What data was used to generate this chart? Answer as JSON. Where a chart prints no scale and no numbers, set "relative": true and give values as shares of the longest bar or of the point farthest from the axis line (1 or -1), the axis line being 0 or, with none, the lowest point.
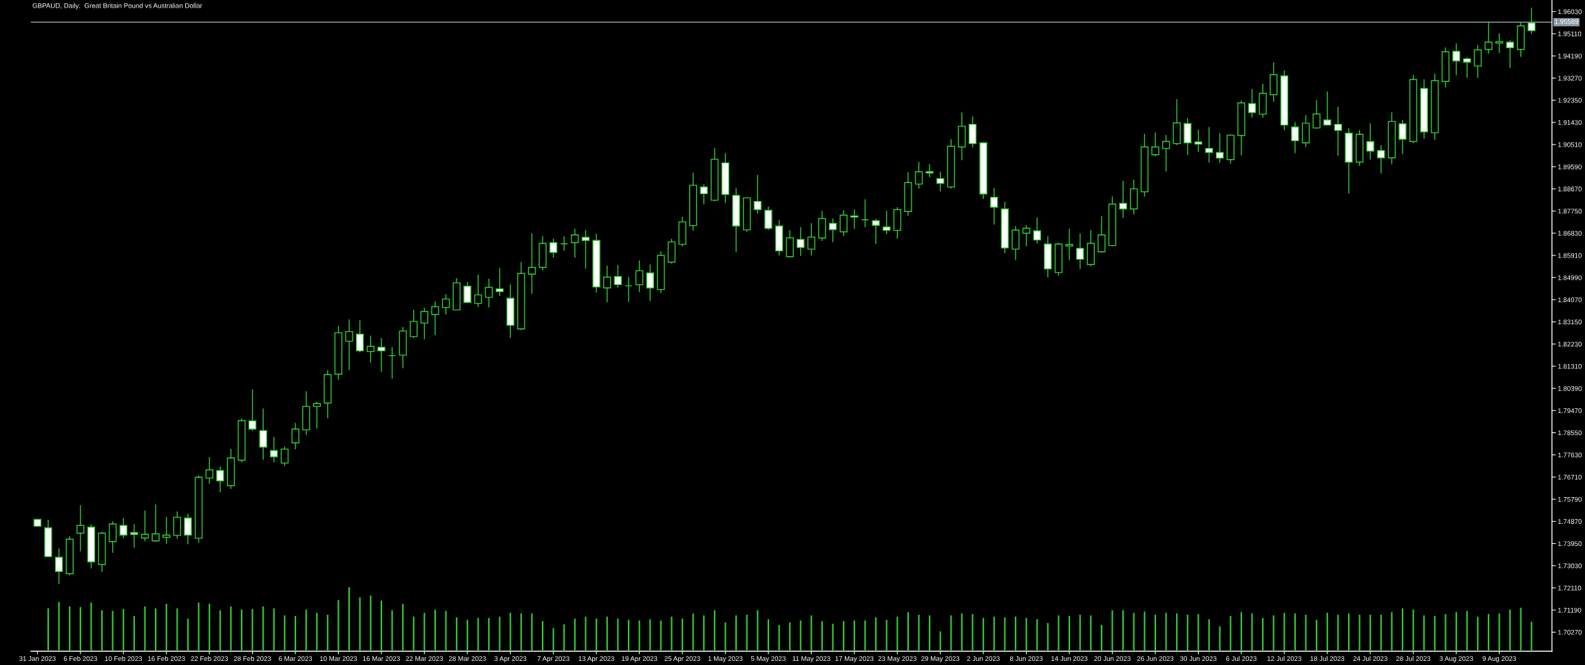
{
  "chart_data": [
    {
      "type": "candlestick",
      "title": "GBPAUD, Daily:  Great Britain Pound vs Australian Dollar",
      "categories": [
        "31 Jan 2023",
        null,
        null,
        null,
        "6 Feb 2023",
        null,
        null,
        null,
        "10 Feb 2023",
        null,
        null,
        null,
        "16 Feb 2023",
        null,
        null,
        null,
        "22 Feb 2023",
        null,
        null,
        null,
        "28 Feb 2023",
        null,
        null,
        null,
        "6 Mar 2023",
        null,
        null,
        null,
        "10 Mar 2023",
        null,
        null,
        null,
        "16 Mar 2023",
        null,
        null,
        null,
        "22 Mar 2023",
        null,
        null,
        null,
        "28 Mar 2023",
        null,
        null,
        null,
        "3 Apr 2023",
        null,
        null,
        null,
        "7 Apr 2023",
        null,
        null,
        null,
        "13 Apr 2023",
        null,
        null,
        null,
        "19 Apr 2023",
        null,
        null,
        null,
        "25 Apr 2023",
        null,
        null,
        null,
        "1 May 2023",
        null,
        null,
        null,
        "5 May 2023",
        null,
        null,
        null,
        "11 May 2023",
        null,
        null,
        null,
        "17 May 2023",
        null,
        null,
        null,
        "23 May 2023",
        null,
        null,
        null,
        "29 May 2023",
        null,
        null,
        null,
        "2 Jun 2023",
        null,
        null,
        null,
        "8 Jun 2023",
        null,
        null,
        null,
        "14 Jun 2023",
        null,
        null,
        null,
        "20 Jun 2023",
        null,
        null,
        null,
        "26 Jun 2023",
        null,
        null,
        null,
        "30 Jun 2023",
        null,
        null,
        null,
        "6 Jul 2023",
        null,
        null,
        null,
        "12 Jul 2023",
        null,
        null,
        null,
        "18 Jul 2023",
        null,
        null,
        null,
        "24 Jul 2023",
        null,
        null,
        null,
        "28 Jul 2023",
        null,
        null,
        null,
        "3 Aug 2023",
        null,
        null,
        null,
        "9 Aug 2023",
        null,
        null,
        null
      ],
      "ohlc": [
        [
          1.7495,
          1.7498,
          1.7464,
          1.7467
        ],
        [
          1.746,
          1.7494,
          1.7338,
          1.7341
        ],
        [
          1.7338,
          1.7375,
          1.7227,
          1.7279
        ],
        [
          1.727,
          1.7425,
          1.7263,
          1.7413
        ],
        [
          1.7438,
          1.7554,
          1.7363,
          1.747
        ],
        [
          1.7463,
          1.7475,
          1.7292,
          1.7319
        ],
        [
          1.7308,
          1.7444,
          1.7277,
          1.7438
        ],
        [
          1.7403,
          1.7487,
          1.7357,
          1.7476
        ],
        [
          1.747,
          1.7501,
          1.7417,
          1.743
        ],
        [
          1.744,
          1.7475,
          1.7379,
          1.7433
        ],
        [
          1.7418,
          1.7532,
          1.7405,
          1.7433
        ],
        [
          1.7406,
          1.7557,
          1.7403,
          1.7435
        ],
        [
          1.7421,
          1.7505,
          1.7394,
          1.743
        ],
        [
          1.7429,
          1.7528,
          1.7415,
          1.7504
        ],
        [
          1.7501,
          1.7519,
          1.7392,
          1.743
        ],
        [
          1.7417,
          1.7678,
          1.7398,
          1.767
        ],
        [
          1.7667,
          1.7754,
          1.7643,
          1.7701
        ],
        [
          1.7698,
          1.7715,
          1.7608,
          1.7655
        ],
        [
          1.7635,
          1.7788,
          1.7622,
          1.775
        ],
        [
          1.7741,
          1.7914,
          1.7732,
          1.7905
        ],
        [
          1.7904,
          1.8035,
          1.7862,
          1.787
        ],
        [
          1.7864,
          1.7955,
          1.7743,
          1.7795
        ],
        [
          1.7781,
          1.7838,
          1.7732,
          1.7755
        ],
        [
          1.7729,
          1.7798,
          1.7717,
          1.7787
        ],
        [
          1.7813,
          1.7896,
          1.7786,
          1.787
        ],
        [
          1.7867,
          1.8027,
          1.7846,
          1.7964
        ],
        [
          1.7964,
          1.7984,
          1.7872,
          1.7976
        ],
        [
          1.7978,
          1.8115,
          1.7915,
          1.8096
        ],
        [
          1.8098,
          1.8298,
          1.8075,
          1.827
        ],
        [
          1.8235,
          1.8325,
          1.8115,
          1.8275
        ],
        [
          1.8264,
          1.8322,
          1.8189,
          1.8195
        ],
        [
          1.8192,
          1.8258,
          1.8146,
          1.8213
        ],
        [
          1.821,
          1.8248,
          1.8108,
          1.8195
        ],
        [
          1.8175,
          1.821,
          1.8079,
          1.8175
        ],
        [
          1.8177,
          1.8294,
          1.8122,
          1.8277
        ],
        [
          1.8254,
          1.8365,
          1.8248,
          1.8317
        ],
        [
          1.831,
          1.8373,
          1.8243,
          1.8358
        ],
        [
          1.8346,
          1.8401,
          1.826,
          1.8378
        ],
        [
          1.8375,
          1.843,
          1.8346,
          1.841
        ],
        [
          1.8365,
          1.8497,
          1.8363,
          1.8477
        ],
        [
          1.8463,
          1.8481,
          1.8394,
          1.8396
        ],
        [
          1.8392,
          1.8511,
          1.8377,
          1.8427
        ],
        [
          1.8417,
          1.8494,
          1.8375,
          1.8458
        ],
        [
          1.8452,
          1.8538,
          1.8422,
          1.8441
        ],
        [
          1.8413,
          1.847,
          1.8249,
          1.8301
        ],
        [
          1.8286,
          1.8564,
          1.8281,
          1.8516
        ],
        [
          1.8513,
          1.8682,
          1.8432,
          1.8541
        ],
        [
          1.8541,
          1.867,
          1.8529,
          1.8641
        ],
        [
          1.8644,
          1.866,
          1.8582,
          1.8603
        ],
        [
          1.8639,
          1.867,
          1.8611,
          1.8639
        ],
        [
          1.8644,
          1.8702,
          1.8582,
          1.8676
        ],
        [
          1.8666,
          1.8696,
          1.8537,
          1.8653
        ],
        [
          1.8653,
          1.8681,
          1.8437,
          1.846
        ],
        [
          1.8456,
          1.8548,
          1.8397,
          1.8501
        ],
        [
          1.8503,
          1.8551,
          1.8457,
          1.847
        ],
        [
          1.8465,
          1.8501,
          1.8398,
          1.8465
        ],
        [
          1.8469,
          1.857,
          1.8439,
          1.8527
        ],
        [
          1.8518,
          1.8553,
          1.8402,
          1.8456
        ],
        [
          1.8449,
          1.8608,
          1.8435,
          1.8591
        ],
        [
          1.8563,
          1.866,
          1.8557,
          1.8647
        ],
        [
          1.8637,
          1.8751,
          1.8628,
          1.873
        ],
        [
          1.8715,
          1.8934,
          1.8694,
          1.8882
        ],
        [
          1.8875,
          1.8887,
          1.8803,
          1.8847
        ],
        [
          1.882,
          1.9036,
          1.8815,
          1.899
        ],
        [
          1.8975,
          1.9015,
          1.8809,
          1.8844
        ],
        [
          1.884,
          1.887,
          1.8605,
          1.8713
        ],
        [
          1.8697,
          1.8832,
          1.8689,
          1.883
        ],
        [
          1.8815,
          1.8925,
          1.8765,
          1.8781
        ],
        [
          1.8778,
          1.8794,
          1.8696,
          1.8703
        ],
        [
          1.8713,
          1.8738,
          1.8591,
          1.861
        ],
        [
          1.8586,
          1.8696,
          1.8584,
          1.8664
        ],
        [
          1.8657,
          1.8708,
          1.8589,
          1.8624
        ],
        [
          1.8617,
          1.8725,
          1.8591,
          1.8667
        ],
        [
          1.8663,
          1.8776,
          1.8651,
          1.8744
        ],
        [
          1.8724,
          1.8744,
          1.8646,
          1.8698
        ],
        [
          1.8689,
          1.8778,
          1.8672,
          1.8758
        ],
        [
          1.8755,
          1.8782,
          1.8702,
          1.875
        ],
        [
          1.8739,
          1.8824,
          1.8708,
          1.8739
        ],
        [
          1.8735,
          1.8744,
          1.8639,
          1.8716
        ],
        [
          1.8709,
          1.8776,
          1.8679,
          1.8695
        ],
        [
          1.8695,
          1.8791,
          1.866,
          1.8781
        ],
        [
          1.8773,
          1.8936,
          1.8755,
          1.8893
        ],
        [
          1.8887,
          1.8979,
          1.8868,
          1.8938
        ],
        [
          1.8939,
          1.897,
          1.8915,
          1.8933
        ],
        [
          1.891,
          1.8938,
          1.8857,
          1.889
        ],
        [
          1.8875,
          1.9073,
          1.8868,
          1.9044
        ],
        [
          1.9041,
          1.9184,
          1.8986,
          1.9127
        ],
        [
          1.9135,
          1.9168,
          1.9039,
          1.9055
        ],
        [
          1.9058,
          1.9062,
          1.8825,
          1.8846
        ],
        [
          1.8832,
          1.887,
          1.8719,
          1.8791
        ],
        [
          1.8784,
          1.8813,
          1.86,
          1.8622
        ],
        [
          1.8617,
          1.8713,
          1.8572,
          1.8696
        ],
        [
          1.8683,
          1.8716,
          1.8629,
          1.8704
        ],
        [
          1.8693,
          1.8748,
          1.8641,
          1.8655
        ],
        [
          1.8638,
          1.867,
          1.85,
          1.8535
        ],
        [
          1.852,
          1.8644,
          1.8506,
          1.8638
        ],
        [
          1.863,
          1.8702,
          1.8572,
          1.8636
        ],
        [
          1.862,
          1.8682,
          1.8535,
          1.8575
        ],
        [
          1.8553,
          1.8696,
          1.8546,
          1.8641
        ],
        [
          1.8606,
          1.8754,
          1.8603,
          1.8676
        ],
        [
          1.8632,
          1.8836,
          1.8629,
          1.8804
        ],
        [
          1.8807,
          1.89,
          1.8746,
          1.8784
        ],
        [
          1.8784,
          1.8905,
          1.876,
          1.8867
        ],
        [
          1.8855,
          1.9096,
          1.8835,
          1.9041
        ],
        [
          1.9009,
          1.9101,
          1.9003,
          1.9041
        ],
        [
          1.9035,
          1.9091,
          1.8939,
          1.9064
        ],
        [
          1.9055,
          1.9239,
          1.9049,
          1.9141
        ],
        [
          1.9138,
          1.916,
          1.9008,
          1.9058
        ],
        [
          1.9062,
          1.9113,
          1.902,
          1.9053
        ],
        [
          1.9035,
          1.9124,
          1.8977,
          1.9018
        ],
        [
          1.9018,
          1.9098,
          1.8975,
          1.8995
        ],
        [
          1.8989,
          1.9094,
          1.8972,
          1.909
        ],
        [
          1.9089,
          1.9234,
          1.9006,
          1.9224
        ],
        [
          1.9221,
          1.9282,
          1.9163,
          1.9184
        ],
        [
          1.9177,
          1.9303,
          1.9163,
          1.9264
        ],
        [
          1.9258,
          1.9392,
          1.9229,
          1.9341
        ],
        [
          1.9336,
          1.9359,
          1.9111,
          1.9132
        ],
        [
          1.9124,
          1.9144,
          1.9015,
          1.9067
        ],
        [
          1.9058,
          1.9173,
          1.9041,
          1.914
        ],
        [
          1.912,
          1.9235,
          1.9117,
          1.9178
        ],
        [
          1.9153,
          1.9272,
          1.913,
          1.9132
        ],
        [
          1.9135,
          1.9208,
          1.9005,
          1.911
        ],
        [
          1.9098,
          1.9119,
          1.8848,
          1.8978
        ],
        [
          1.8978,
          1.9111,
          1.8963,
          1.9093
        ],
        [
          1.9063,
          1.9139,
          1.8989,
          1.9024
        ],
        [
          1.9026,
          1.9049,
          1.8932,
          1.8996
        ],
        [
          1.8996,
          1.9185,
          1.8969,
          1.9147
        ],
        [
          1.9137,
          1.9154,
          1.9012,
          1.9073
        ],
        [
          1.9064,
          1.934,
          1.9057,
          1.9321
        ],
        [
          1.9284,
          1.9322,
          1.9075,
          1.9104
        ],
        [
          1.91,
          1.9345,
          1.907,
          1.9316
        ],
        [
          1.9313,
          1.9454,
          1.9288,
          1.9436
        ],
        [
          1.9438,
          1.9471,
          1.9339,
          1.9398
        ],
        [
          1.9407,
          1.9413,
          1.9329,
          1.9393
        ],
        [
          1.9377,
          1.9464,
          1.9328,
          1.9444
        ],
        [
          1.9446,
          1.9562,
          1.9428,
          1.9476
        ],
        [
          1.9472,
          1.9513,
          1.9431,
          1.9478
        ],
        [
          1.9476,
          1.9484,
          1.9368,
          1.9453
        ],
        [
          1.9446,
          1.9558,
          1.9415,
          1.9544
        ],
        [
          1.9556,
          1.9619,
          1.9511,
          1.9524
        ]
      ],
      "color": "#32cd32",
      "colors": [
        "#ffffff",
        "#ffffff",
        "#ffffff",
        "#000000",
        "#000000",
        "#ffffff",
        "#000000",
        "#000000",
        "#ffffff",
        "#ffffff",
        "#000000",
        "#000000",
        "#000000",
        "#000000",
        "#ffffff",
        "#000000",
        "#000000",
        "#ffffff",
        "#000000",
        "#000000",
        "#ffffff",
        "#ffffff",
        "#ffffff",
        "#000000",
        "#000000",
        "#000000",
        "#000000",
        "#000000",
        "#000000",
        "#000000",
        "#ffffff",
        "#000000",
        "#ffffff",
        "#32cd32",
        "#000000",
        "#000000",
        "#000000",
        "#000000",
        "#000000",
        "#000000",
        "#ffffff",
        "#000000",
        "#000000",
        "#ffffff",
        "#ffffff",
        "#000000",
        "#000000",
        "#000000",
        "#ffffff",
        "#32cd32",
        "#000000",
        "#ffffff",
        "#ffffff",
        "#000000",
        "#ffffff",
        "#32cd32",
        "#000000",
        "#ffffff",
        "#000000",
        "#000000",
        "#000000",
        "#000000",
        "#ffffff",
        "#000000",
        "#ffffff",
        "#ffffff",
        "#000000",
        "#ffffff",
        "#ffffff",
        "#ffffff",
        "#000000",
        "#ffffff",
        "#000000",
        "#000000",
        "#ffffff",
        "#000000",
        "#ffffff",
        "#32cd32",
        "#ffffff",
        "#ffffff",
        "#000000",
        "#000000",
        "#000000",
        "#ffffff",
        "#ffffff",
        "#000000",
        "#000000",
        "#ffffff",
        "#ffffff",
        "#ffffff",
        "#ffffff",
        "#000000",
        "#000000",
        "#ffffff",
        "#ffffff",
        "#000000",
        "#000000",
        "#ffffff",
        "#000000",
        "#000000",
        "#000000",
        "#ffffff",
        "#000000",
        "#000000",
        "#000000",
        "#000000",
        "#000000",
        "#ffffff",
        "#ffffff",
        "#ffffff",
        "#ffffff",
        "#000000",
        "#000000",
        "#ffffff",
        "#000000",
        "#000000",
        "#ffffff",
        "#ffffff",
        "#000000",
        "#000000",
        "#ffffff",
        "#ffffff",
        "#ffffff",
        "#000000",
        "#ffffff",
        "#ffffff",
        "#000000",
        "#ffffff",
        "#000000",
        "#ffffff",
        "#000000",
        "#000000",
        "#ffffff",
        "#ffffff",
        "#000000",
        "#000000",
        "#000000",
        "#ffffff",
        "#000000",
        "#ffffff"
      ],
      "ylim": [
        1.6948,
        1.9651
      ],
      "yticks": [
        {
          "value": 1.7027,
          "label": "1.70270"
        },
        {
          "value": 1.7119,
          "label": "1.71190"
        },
        {
          "value": 1.7211,
          "label": "1.72110"
        },
        {
          "value": 1.7303,
          "label": "1.73030"
        },
        {
          "value": 1.7395,
          "label": "1.73950"
        },
        {
          "value": 1.7487,
          "label": "1.74870"
        },
        {
          "value": 1.7579,
          "label": "1.75790"
        },
        {
          "value": 1.7671,
          "label": "1.76710"
        },
        {
          "value": 1.7763,
          "label": "1.77630"
        },
        {
          "value": 1.7855,
          "label": "1.78550"
        },
        {
          "value": 1.7947,
          "label": "1.79470"
        },
        {
          "value": 1.8039,
          "label": "1.80390"
        },
        {
          "value": 1.8131,
          "label": "1.81310"
        },
        {
          "value": 1.8223,
          "label": "1.82230"
        },
        {
          "value": 1.8315,
          "label": "1.83150"
        },
        {
          "value": 1.8407,
          "label": "1.84070"
        },
        {
          "value": 1.8499,
          "label": "1.84990"
        },
        {
          "value": 1.8591,
          "label": "1.85910"
        },
        {
          "value": 1.8683,
          "label": "1.86830"
        },
        {
          "value": 1.8775,
          "label": "1.87750"
        },
        {
          "value": 1.8867,
          "label": "1.88670"
        },
        {
          "value": 1.8959,
          "label": "1.89590"
        },
        {
          "value": 1.9051,
          "label": "1.90510"
        },
        {
          "value": 1.9143,
          "label": "1.91430"
        },
        {
          "value": 1.9235,
          "label": "1.92350"
        },
        {
          "value": 1.9327,
          "label": "1.93270"
        },
        {
          "value": 1.9419,
          "label": "1.94190"
        },
        {
          "value": 1.9511,
          "label": "1.95110"
        },
        {
          "value": 1.9603,
          "label": "1.96030"
        }
      ],
      "ref_lines": [
        {
          "axis": "y",
          "value": 1.95589,
          "label": "1.95589",
          "color": "#8c98a4"
        }
      ]
    },
    {
      "type": "bar",
      "categories": [
        null,
        null,
        null,
        null,
        null,
        null,
        null,
        null,
        null,
        null,
        null,
        null,
        null,
        null,
        null,
        null,
        null,
        null,
        null,
        null,
        null,
        null,
        null,
        null,
        null,
        null,
        null,
        null,
        null,
        null,
        null,
        null,
        null,
        null,
        null,
        null,
        null,
        null,
        null,
        null,
        null,
        null,
        null,
        null,
        null,
        null,
        null,
        null,
        null,
        null,
        null,
        null,
        null,
        null,
        null,
        null,
        null,
        null,
        null,
        null,
        null,
        null,
        null,
        null,
        null,
        null,
        null,
        null,
        null,
        null,
        null,
        null,
        null,
        null,
        null,
        null,
        null,
        null,
        null,
        null,
        null,
        null,
        null,
        null,
        null,
        null,
        null,
        null,
        null,
        null,
        null,
        null,
        null,
        null,
        null,
        null,
        null,
        null,
        null,
        null,
        null,
        null,
        null,
        null,
        null,
        null,
        null,
        null,
        null,
        null,
        null,
        null,
        null,
        null,
        null,
        null,
        null,
        null,
        null,
        null,
        null,
        null,
        null,
        null,
        null,
        null,
        null,
        null,
        null,
        null,
        null,
        null,
        null,
        null,
        null,
        null,
        null,
        null,
        null,
        null
      ],
      "values": [
        null,
        0.67,
        0.77,
        0.7,
        0.69,
        0.76,
        0.64,
        0.63,
        0.66,
        0.55,
        0.7,
        0.67,
        0.74,
        0.67,
        0.51,
        0.76,
        0.74,
        0.64,
        0.7,
        0.65,
        0.66,
        0.7,
        0.67,
        0.56,
        0.55,
        0.65,
        0.6,
        0.57,
        0.8,
        1.0,
        0.84,
        0.87,
        0.79,
        0.64,
        0.74,
        0.54,
        0.6,
        0.65,
        0.63,
        0.53,
        0.49,
        0.52,
        0.52,
        0.54,
        0.6,
        0.59,
        0.59,
        0.47,
        0.36,
        0.42,
        0.51,
        0.54,
        0.51,
        0.54,
        0.51,
        0.49,
        0.48,
        0.5,
        0.48,
        0.54,
        0.51,
        0.59,
        0.56,
        0.64,
        0.45,
        0.56,
        0.57,
        0.64,
        0.5,
        0.41,
        0.45,
        0.48,
        0.56,
        0.47,
        0.43,
        0.47,
        0.48,
        0.48,
        0.53,
        0.49,
        0.54,
        0.61,
        0.57,
        0.56,
        0.31,
        0.56,
        0.59,
        0.58,
        0.52,
        0.54,
        0.53,
        0.54,
        0.52,
        0.5,
        0.44,
        0.56,
        0.55,
        0.57,
        0.56,
        0.41,
        0.64,
        0.64,
        0.6,
        0.62,
        0.57,
        0.6,
        0.59,
        0.57,
        0.58,
        0.5,
        0.39,
        0.55,
        0.61,
        0.59,
        0.52,
        0.56,
        0.6,
        0.59,
        0.57,
        0.49,
        0.6,
        0.57,
        0.59,
        0.57,
        0.57,
        0.57,
        0.61,
        0.67,
        0.65,
        0.56,
        0.55,
        0.58,
        0.61,
        0.63,
        0.54,
        0.58,
        0.59,
        0.65,
        0.68,
        0.46
      ],
      "color": "#32cd32",
      "relative": true
    }
  ]
}
